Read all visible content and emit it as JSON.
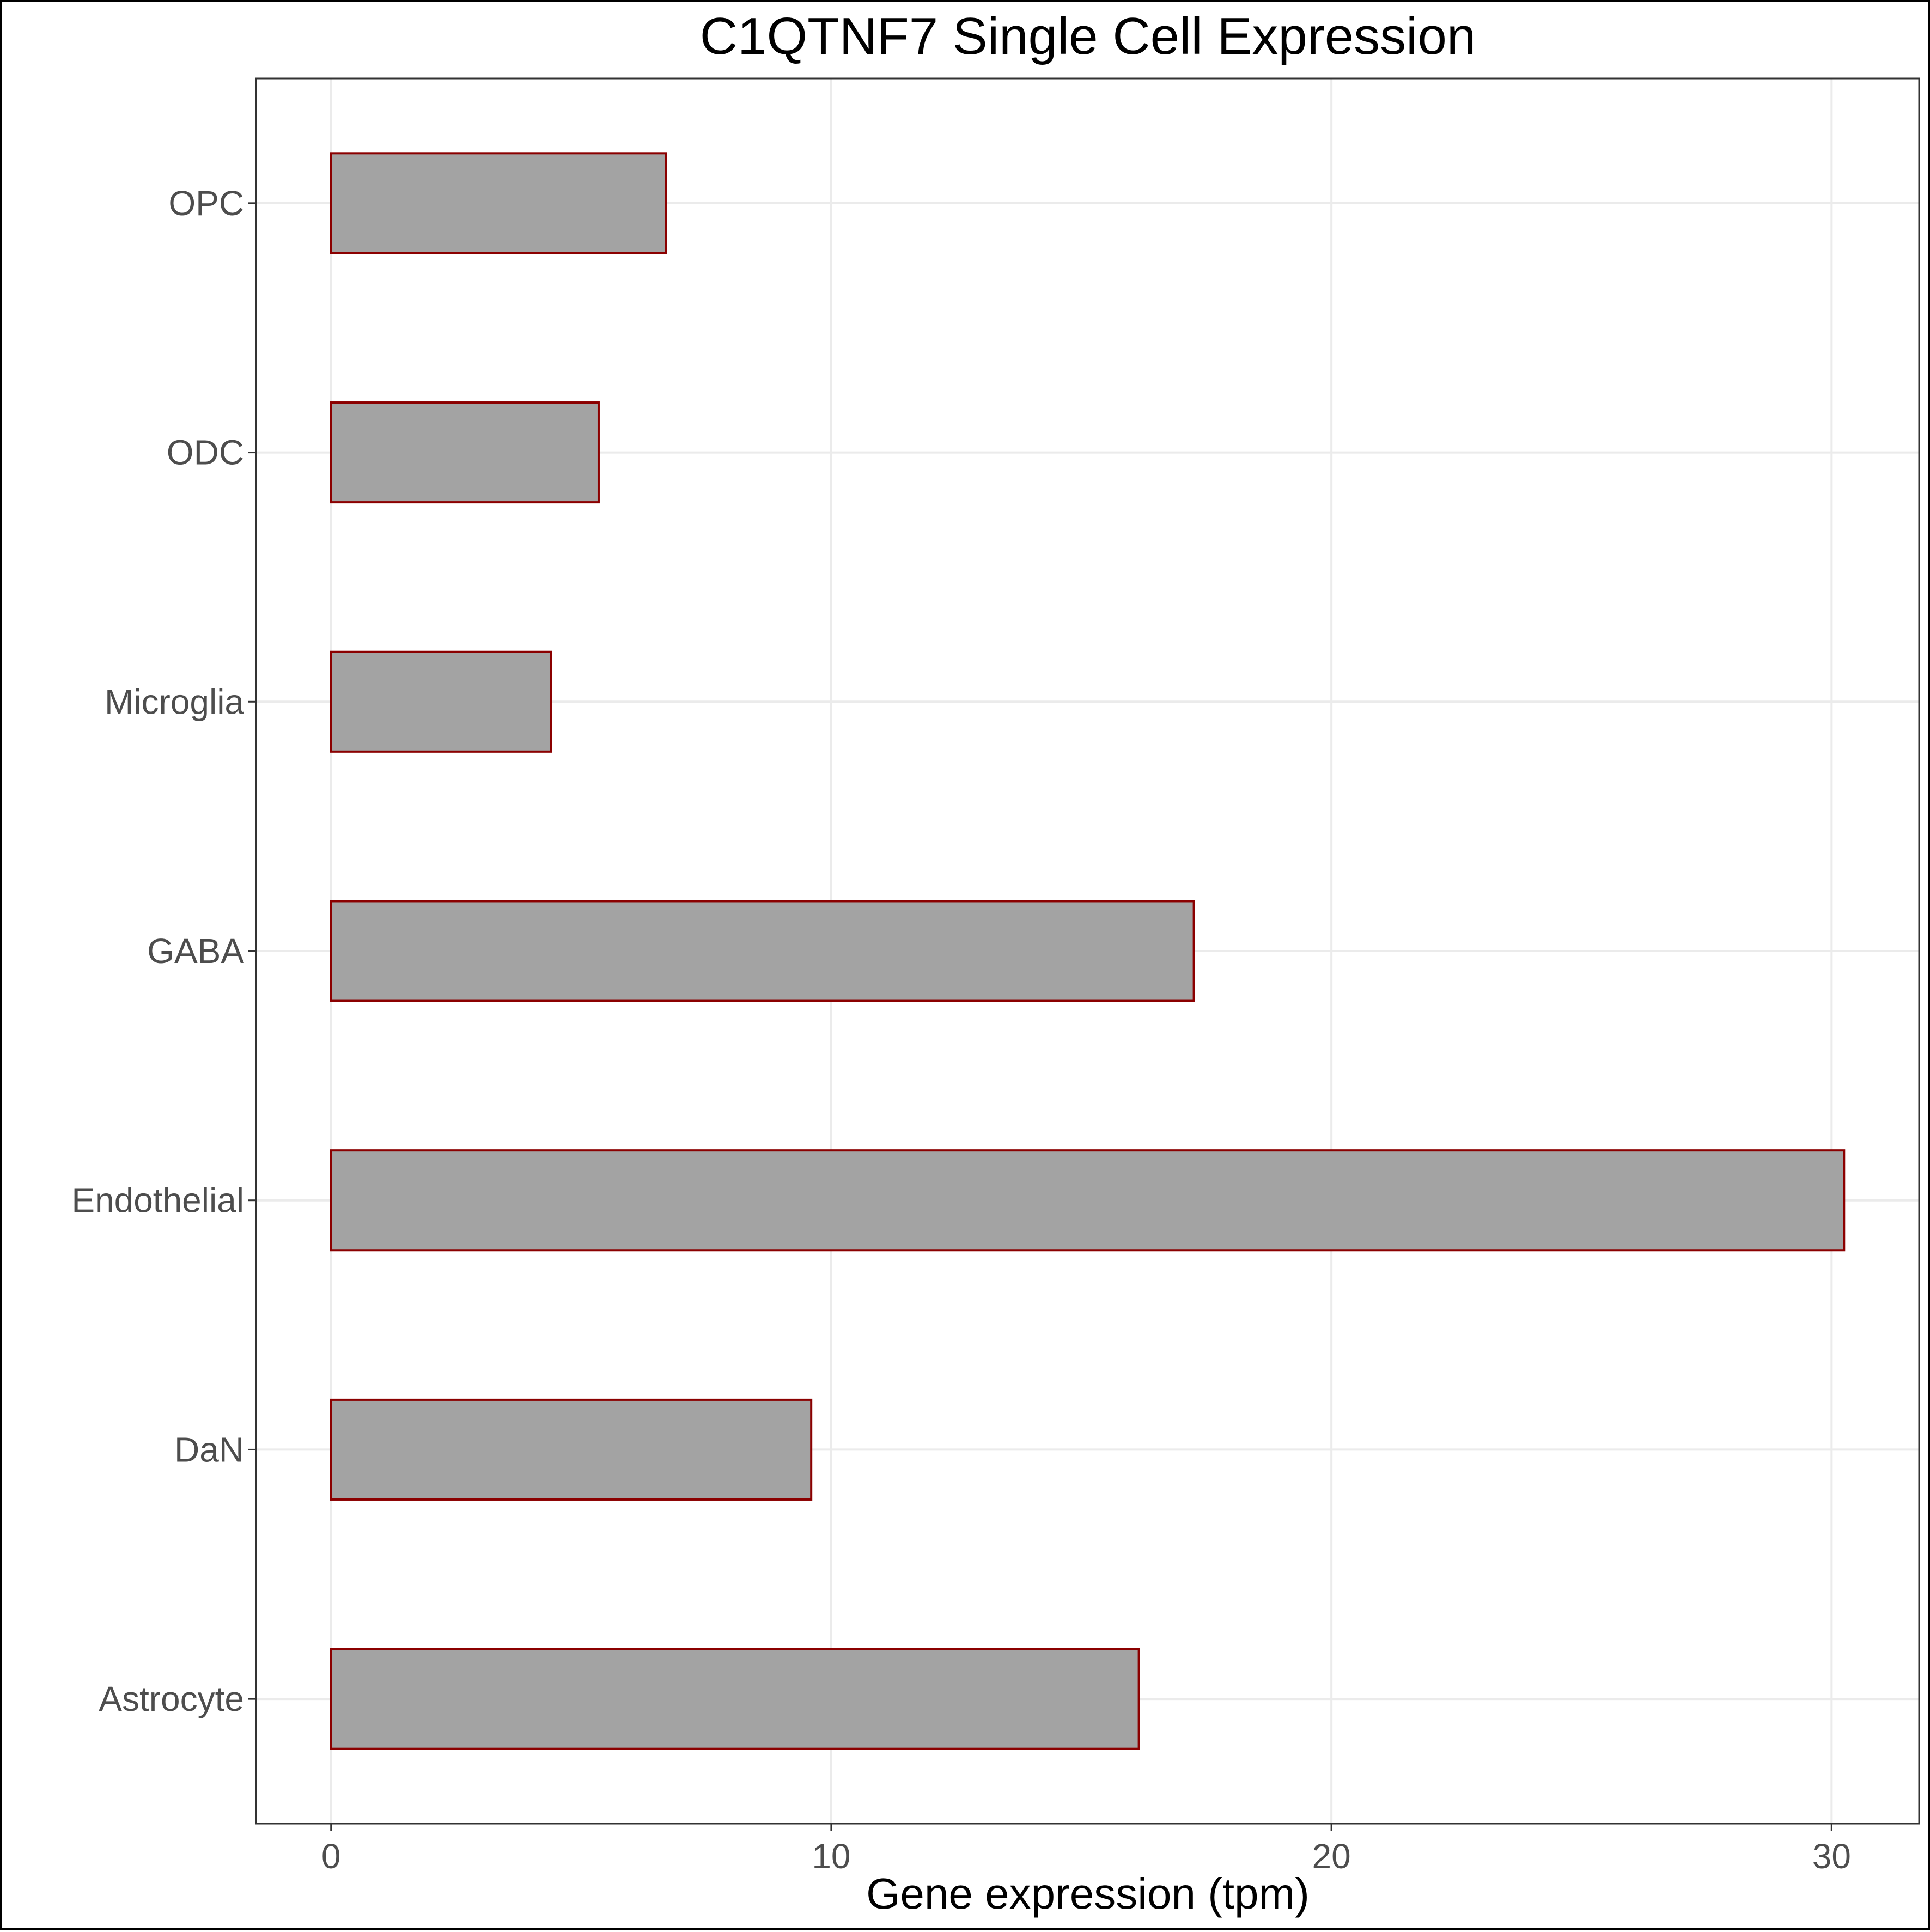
{
  "chart_data": {
    "type": "bar",
    "orientation": "horizontal",
    "title": "C1QTNF7 Single Cell Expression",
    "xlabel": "Gene expression (tpm)",
    "ylabel": "",
    "categories": [
      "OPC",
      "ODC",
      "Microglia",
      "GABA",
      "Endothelial",
      "DaN",
      "Astrocyte"
    ],
    "values": [
      6.7,
      5.35,
      4.4,
      17.25,
      30.25,
      9.6,
      16.15
    ],
    "xlim": [
      -1.5,
      31.75
    ],
    "xticks": [
      0,
      10,
      20,
      30
    ],
    "xtick_labels": [
      "0",
      "10",
      "20",
      "30"
    ],
    "grid": true,
    "legend": "none",
    "colors": {
      "bar_fill": "#a3a3a3",
      "bar_stroke": "#8b0000",
      "grid": "#ebebeb",
      "panel_border": "#333333",
      "tick_text": "#4d4d4d",
      "title_text": "#000000"
    }
  }
}
